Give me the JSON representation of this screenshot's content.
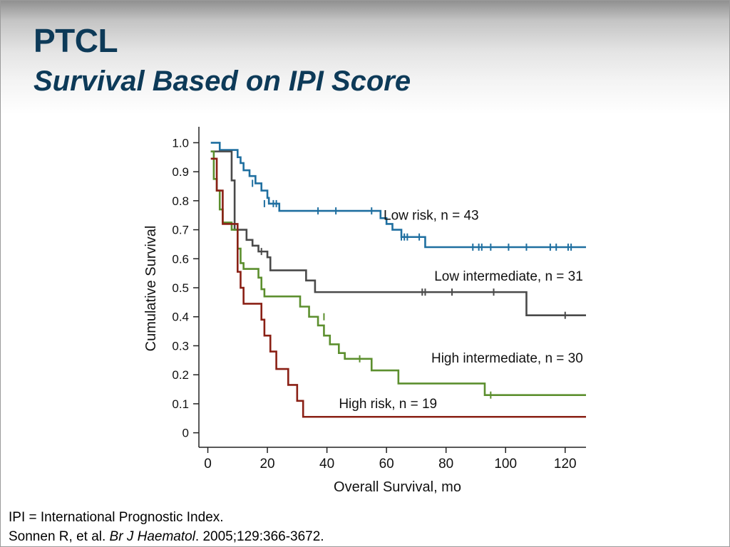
{
  "slide": {
    "title": "PTCL",
    "subtitle": "Survival Based on IPI Score"
  },
  "footer": {
    "line1": "IPI = International Prognostic Index.",
    "ref_authors": "Sonnen R, et al. ",
    "ref_journal": "Br J Haematol",
    "ref_rest": ". 2005;129:366-3672."
  },
  "chart_data": {
    "type": "line",
    "xlabel": "Overall Survival, mo",
    "ylabel": "Cumulative Survival",
    "xlim": [
      -3,
      127
    ],
    "ylim": [
      -0.05,
      1.055
    ],
    "xticks": [
      0,
      20,
      40,
      60,
      80,
      100,
      120
    ],
    "xtick_labels": [
      "0",
      "20",
      "40",
      "60",
      "80",
      "100",
      "120"
    ],
    "yticks": [
      0,
      0.1,
      0.2,
      0.3,
      0.4,
      0.5,
      0.6,
      0.7,
      0.8,
      0.9,
      1.0
    ],
    "ytick_labels": [
      "0",
      "0.1",
      "0.2",
      "0.3",
      "0.4",
      "0.5",
      "0.6",
      "0.7",
      "0.8",
      "0.9",
      "1.0"
    ],
    "grid": false,
    "series": [
      {
        "name": "Low risk, n = 43",
        "color": "#1f6fa0",
        "steps": [
          [
            1,
            1.0
          ],
          [
            4,
            0.975
          ],
          [
            10,
            0.95
          ],
          [
            11,
            0.93
          ],
          [
            12,
            0.905
          ],
          [
            14,
            0.885
          ],
          [
            16,
            0.86
          ],
          [
            18,
            0.835
          ],
          [
            20,
            0.81
          ],
          [
            20.5,
            0.79
          ],
          [
            24,
            0.765
          ],
          [
            58,
            0.74
          ],
          [
            60,
            0.72
          ],
          [
            62,
            0.7
          ],
          [
            65,
            0.675
          ],
          [
            73,
            0.64
          ],
          [
            127,
            0.64
          ]
        ],
        "censors": [
          [
            15,
            0.86
          ],
          [
            19,
            0.79
          ],
          [
            22,
            0.79
          ],
          [
            23,
            0.79
          ],
          [
            37,
            0.765
          ],
          [
            43,
            0.765
          ],
          [
            55,
            0.765
          ],
          [
            65,
            0.675
          ],
          [
            66,
            0.675
          ],
          [
            67,
            0.675
          ],
          [
            71,
            0.675
          ],
          [
            89,
            0.64
          ],
          [
            91,
            0.64
          ],
          [
            92,
            0.64
          ],
          [
            95,
            0.64
          ],
          [
            101,
            0.64
          ],
          [
            107,
            0.64
          ],
          [
            115,
            0.64
          ],
          [
            117,
            0.64
          ],
          [
            121,
            0.64
          ],
          [
            122,
            0.64
          ]
        ],
        "label_pos": [
          75,
          0.735
        ],
        "label_anchor": "middle"
      },
      {
        "name": "Low intermediate, n = 31",
        "color": "#4a4a4a",
        "steps": [
          [
            1,
            0.97
          ],
          [
            6,
            0.97
          ],
          [
            8,
            0.87
          ],
          [
            9,
            0.7
          ],
          [
            12,
            0.7
          ],
          [
            13,
            0.665
          ],
          [
            15,
            0.645
          ],
          [
            17,
            0.625
          ],
          [
            20,
            0.605
          ],
          [
            21,
            0.56
          ],
          [
            33,
            0.525
          ],
          [
            36,
            0.485
          ],
          [
            107,
            0.485
          ],
          [
            107,
            0.405
          ],
          [
            127,
            0.405
          ]
        ],
        "censors": [
          [
            18,
            0.625
          ],
          [
            72,
            0.485
          ],
          [
            73,
            0.485
          ],
          [
            82,
            0.485
          ],
          [
            96,
            0.485
          ],
          [
            120,
            0.405
          ]
        ],
        "label_pos": [
          126,
          0.525
        ],
        "label_anchor": "end"
      },
      {
        "name": "High intermediate, n = 30",
        "color": "#5c8f2e",
        "steps": [
          [
            1,
            0.97
          ],
          [
            2,
            0.875
          ],
          [
            3,
            0.835
          ],
          [
            4,
            0.77
          ],
          [
            5,
            0.725
          ],
          [
            8,
            0.7
          ],
          [
            10,
            0.635
          ],
          [
            11,
            0.585
          ],
          [
            12,
            0.565
          ],
          [
            17,
            0.535
          ],
          [
            18,
            0.495
          ],
          [
            19,
            0.47
          ],
          [
            31,
            0.435
          ],
          [
            34,
            0.4
          ],
          [
            37,
            0.37
          ],
          [
            39,
            0.335
          ],
          [
            41,
            0.305
          ],
          [
            44,
            0.275
          ],
          [
            46,
            0.255
          ],
          [
            55,
            0.215
          ],
          [
            64,
            0.17
          ],
          [
            93,
            0.13
          ],
          [
            127,
            0.13
          ]
        ],
        "censors": [
          [
            39,
            0.4
          ],
          [
            51,
            0.255
          ],
          [
            95,
            0.13
          ]
        ],
        "label_pos": [
          126,
          0.242
        ],
        "label_anchor": "end"
      },
      {
        "name": "High risk, n = 19",
        "color": "#8a2015",
        "steps": [
          [
            1,
            0.945
          ],
          [
            3,
            0.835
          ],
          [
            5,
            0.72
          ],
          [
            9,
            0.72
          ],
          [
            10,
            0.555
          ],
          [
            11,
            0.5
          ],
          [
            12,
            0.445
          ],
          [
            18,
            0.39
          ],
          [
            19,
            0.335
          ],
          [
            21,
            0.28
          ],
          [
            23,
            0.22
          ],
          [
            27,
            0.165
          ],
          [
            30,
            0.11
          ],
          [
            32,
            0.055
          ],
          [
            127,
            0.055
          ]
        ],
        "censors": [],
        "label_pos": [
          44,
          0.085
        ],
        "label_anchor": "start"
      }
    ]
  }
}
